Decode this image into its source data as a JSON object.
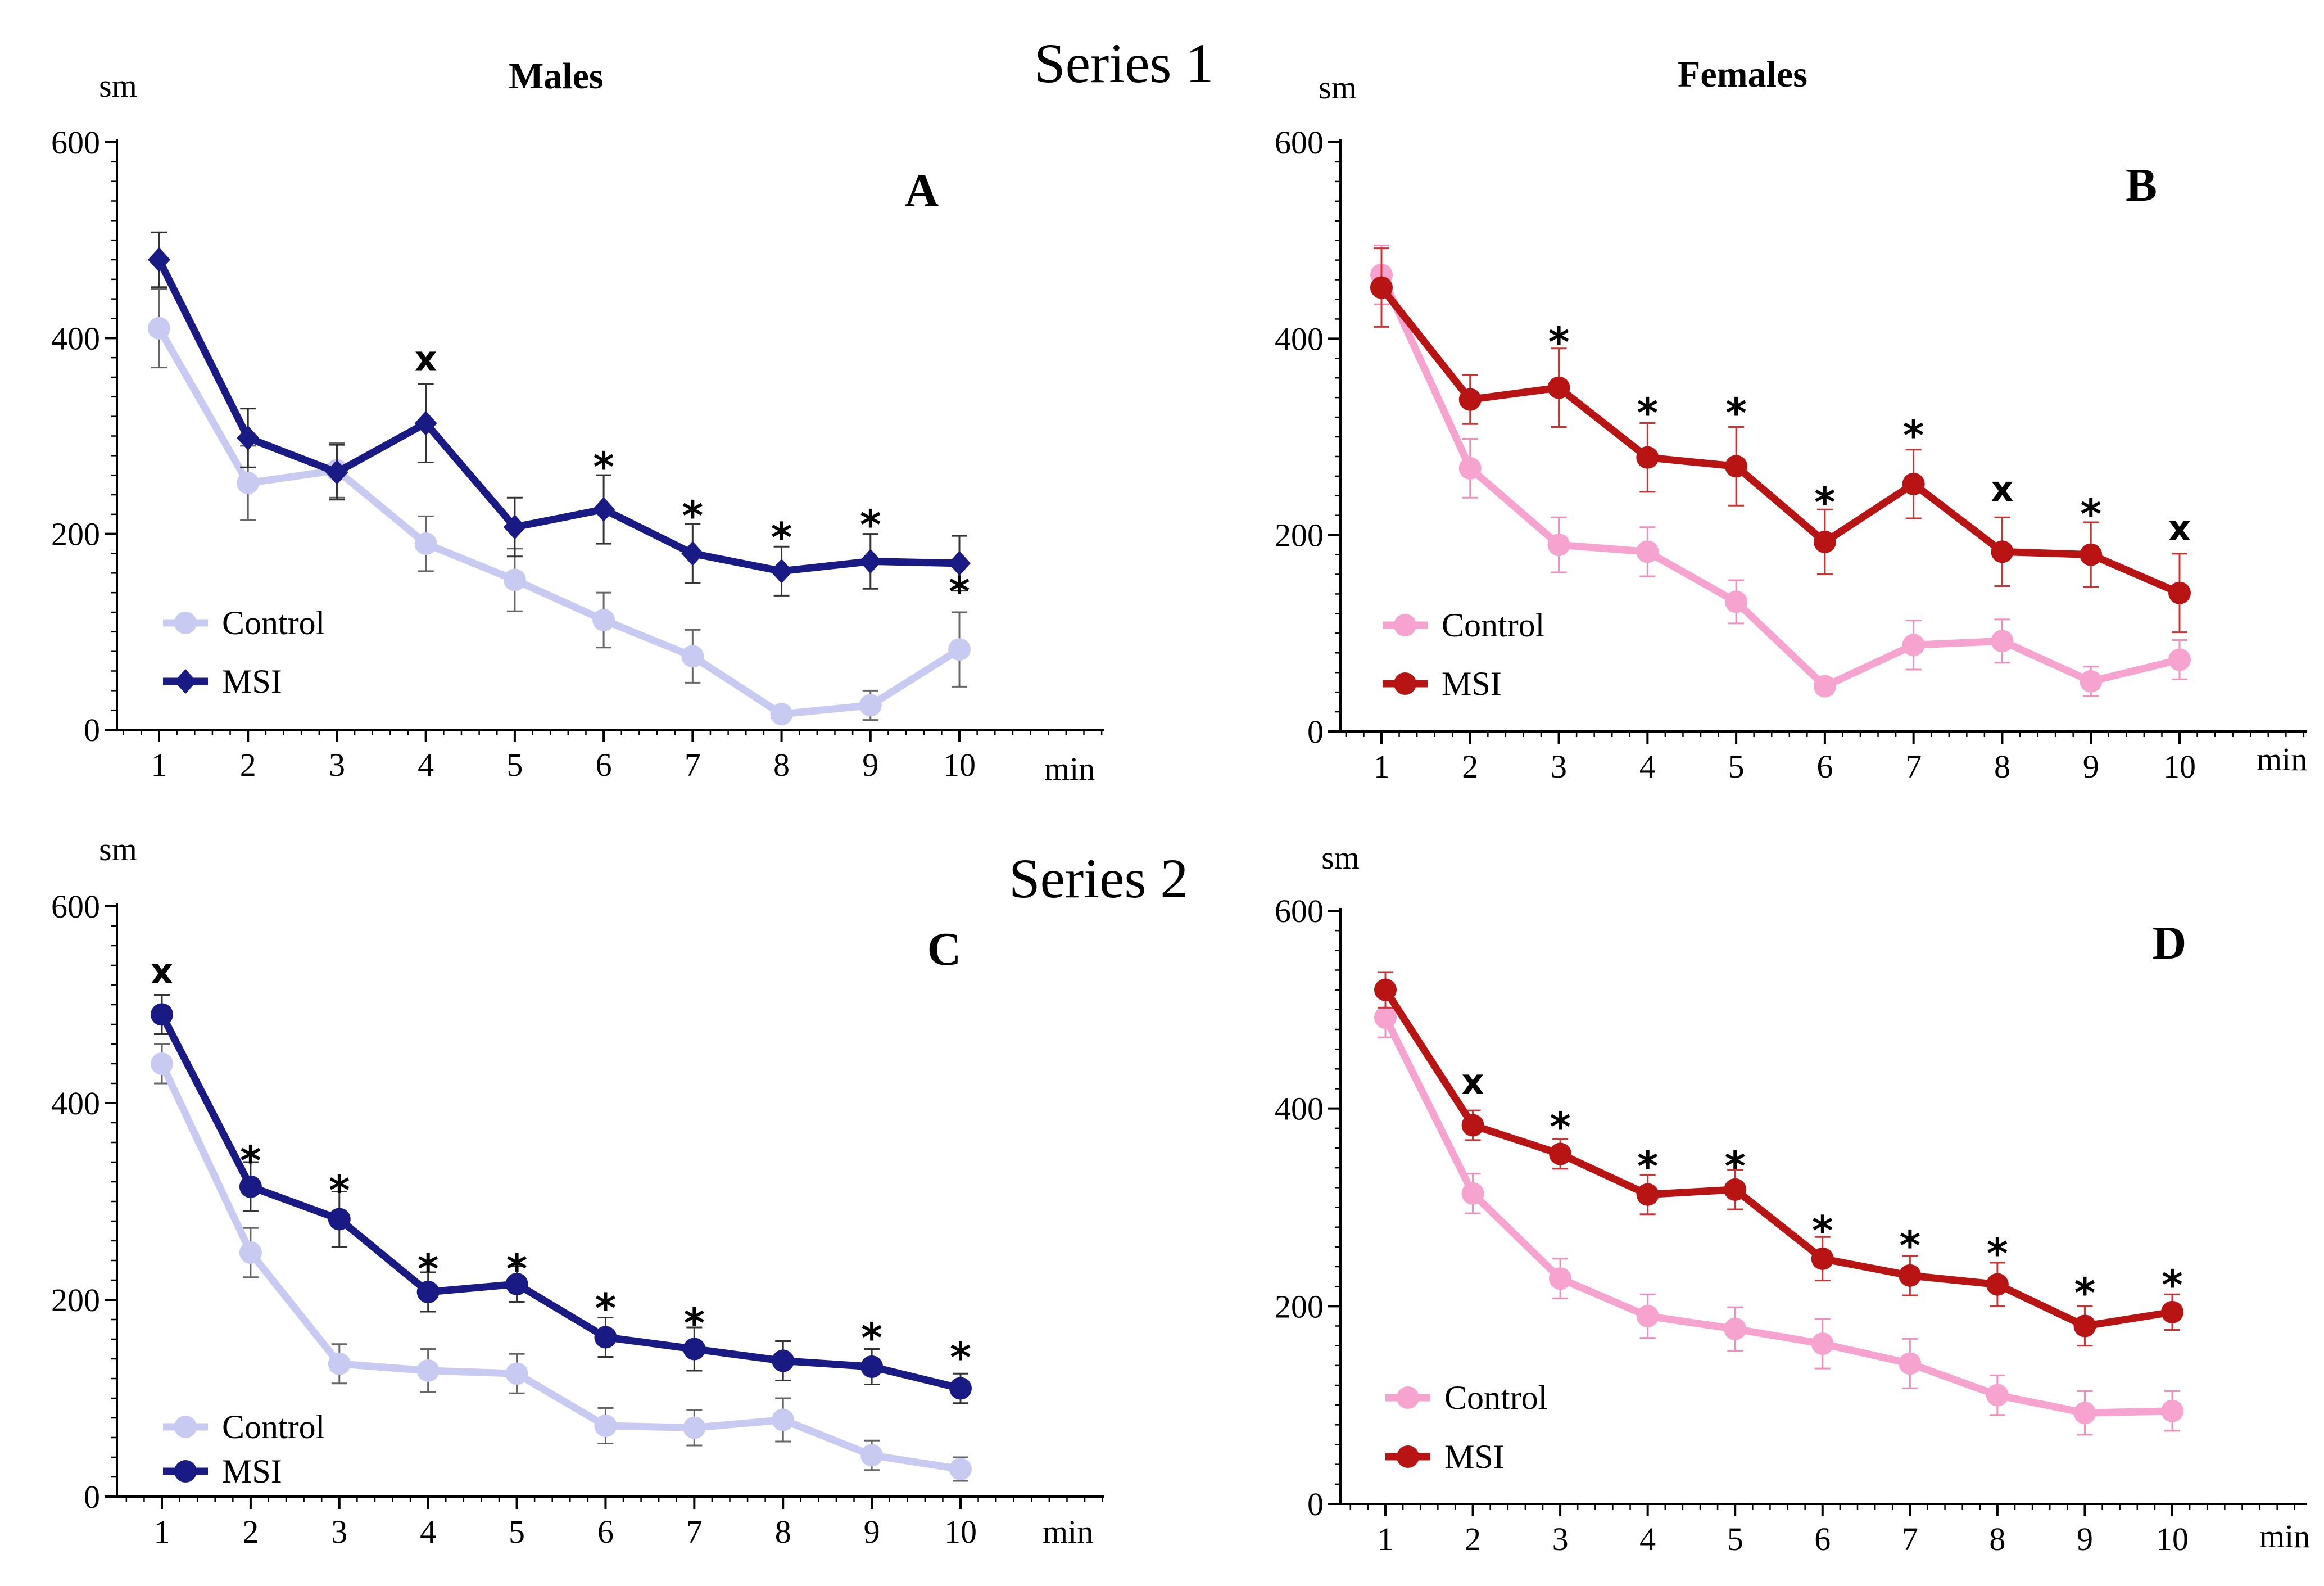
{
  "figure": {
    "series1_label": "Series 1",
    "series2_label": "Series 2",
    "males_label": "Males",
    "females_label": "Females"
  },
  "chart_data": [
    {
      "id": "A",
      "type": "line",
      "panel_label": "A",
      "ylabel": "sm",
      "xlabel": "min",
      "ylim": [
        0,
        600
      ],
      "yticks": [
        0,
        200,
        400,
        600
      ],
      "categories": [
        "1",
        "2",
        "3",
        "4",
        "5",
        "6",
        "7",
        "8",
        "9",
        "10"
      ],
      "series": [
        {
          "name": "Control",
          "color": "#c8caf2",
          "marker": "circle",
          "values": [
            410,
            252,
            265,
            190,
            153,
            112,
            75,
            16,
            25,
            82
          ],
          "errors": [
            40,
            38,
            28,
            28,
            32,
            28,
            27,
            6,
            15,
            38
          ]
        },
        {
          "name": "MSI",
          "color": "#1a1a85",
          "marker": "diamond",
          "values": [
            480,
            298,
            263,
            313,
            207,
            225,
            180,
            162,
            172,
            170
          ],
          "errors": [
            28,
            30,
            28,
            40,
            30,
            35,
            30,
            25,
            28,
            28
          ]
        }
      ],
      "annotations": [
        {
          "x": 4,
          "text": "x",
          "y": 377
        },
        {
          "x": 6,
          "text": "*",
          "y": 277
        },
        {
          "x": 7,
          "text": "*",
          "y": 227
        },
        {
          "x": 8,
          "text": "*",
          "y": 205
        },
        {
          "x": 9,
          "text": "*",
          "y": 218
        },
        {
          "x": 10,
          "text": "*",
          "y": 150
        }
      ],
      "legend": [
        {
          "name": "Control",
          "marker": "circle"
        },
        {
          "name": "MSI",
          "marker": "diamond"
        }
      ]
    },
    {
      "id": "B",
      "type": "line",
      "panel_label": "B",
      "ylabel": "sm",
      "xlabel": "min",
      "ylim": [
        0,
        600
      ],
      "yticks": [
        0,
        200,
        400,
        600
      ],
      "categories": [
        "1",
        "2",
        "3",
        "4",
        "5",
        "6",
        "7",
        "8",
        "9",
        "10"
      ],
      "series": [
        {
          "name": "Control",
          "color": "#f7a3cf",
          "marker": "circle",
          "values": [
            465,
            268,
            190,
            183,
            132,
            46,
            88,
            92,
            51,
            73
          ],
          "errors": [
            30,
            30,
            28,
            25,
            22,
            8,
            25,
            22,
            15,
            20
          ]
        },
        {
          "name": "MSI",
          "color": "#b81414",
          "marker": "circle",
          "values": [
            452,
            338,
            350,
            279,
            270,
            193,
            252,
            183,
            180,
            141
          ],
          "errors": [
            40,
            25,
            40,
            35,
            40,
            33,
            35,
            35,
            33,
            40
          ]
        }
      ],
      "annotations": [
        {
          "x": 3,
          "text": "*",
          "y": 405
        },
        {
          "x": 4,
          "text": "*",
          "y": 333
        },
        {
          "x": 5,
          "text": "*",
          "y": 333
        },
        {
          "x": 6,
          "text": "*",
          "y": 242
        },
        {
          "x": 7,
          "text": "*",
          "y": 310
        },
        {
          "x": 8,
          "text": "x",
          "y": 245
        },
        {
          "x": 9,
          "text": "*",
          "y": 230
        },
        {
          "x": 10,
          "text": "x",
          "y": 205
        }
      ],
      "legend": [
        {
          "name": "Control",
          "marker": "circle"
        },
        {
          "name": "MSI",
          "marker": "circle"
        }
      ]
    },
    {
      "id": "C",
      "type": "line",
      "panel_label": "C",
      "ylabel": "sm",
      "xlabel": "min",
      "ylim": [
        0,
        600
      ],
      "yticks": [
        0,
        200,
        400,
        600
      ],
      "categories": [
        "1",
        "2",
        "3",
        "4",
        "5",
        "6",
        "7",
        "8",
        "9",
        "10"
      ],
      "series": [
        {
          "name": "Control",
          "color": "#c8caf2",
          "marker": "circle",
          "values": [
            440,
            248,
            135,
            128,
            125,
            72,
            70,
            78,
            42,
            28
          ],
          "errors": [
            20,
            25,
            20,
            22,
            20,
            18,
            18,
            22,
            15,
            12
          ]
        },
        {
          "name": "MSI",
          "color": "#1a1a85",
          "marker": "circle",
          "values": [
            490,
            315,
            282,
            208,
            216,
            162,
            150,
            138,
            132,
            110
          ],
          "errors": [
            20,
            25,
            28,
            20,
            18,
            20,
            22,
            20,
            18,
            15
          ]
        }
      ],
      "annotations": [
        {
          "x": 1,
          "text": "x",
          "y": 532
        },
        {
          "x": 2,
          "text": "*",
          "y": 350
        },
        {
          "x": 3,
          "text": "*",
          "y": 320
        },
        {
          "x": 4,
          "text": "*",
          "y": 240
        },
        {
          "x": 5,
          "text": "*",
          "y": 240
        },
        {
          "x": 6,
          "text": "*",
          "y": 200
        },
        {
          "x": 7,
          "text": "*",
          "y": 185
        },
        {
          "x": 9,
          "text": "*",
          "y": 170
        },
        {
          "x": 10,
          "text": "*",
          "y": 150
        }
      ],
      "legend": [
        {
          "name": "Control",
          "marker": "circle"
        },
        {
          "name": "MSI",
          "marker": "circle"
        }
      ]
    },
    {
      "id": "D",
      "type": "line",
      "panel_label": "D",
      "ylabel": "sm",
      "xlabel": "min",
      "ylim": [
        0,
        600
      ],
      "yticks": [
        0,
        200,
        400,
        600
      ],
      "categories": [
        "1",
        "2",
        "3",
        "4",
        "5",
        "6",
        "7",
        "8",
        "9",
        "10"
      ],
      "series": [
        {
          "name": "Control",
          "color": "#f7a3cf",
          "marker": "circle",
          "values": [
            492,
            314,
            228,
            190,
            177,
            162,
            142,
            110,
            92,
            94
          ],
          "errors": [
            20,
            20,
            20,
            22,
            22,
            25,
            25,
            20,
            22,
            20
          ]
        },
        {
          "name": "MSI",
          "color": "#b81414",
          "marker": "circle",
          "values": [
            520,
            383,
            354,
            313,
            318,
            248,
            231,
            222,
            180,
            194
          ],
          "errors": [
            18,
            15,
            15,
            20,
            20,
            22,
            20,
            22,
            20,
            18
          ]
        }
      ],
      "annotations": [
        {
          "x": 2,
          "text": "x",
          "y": 425
        },
        {
          "x": 3,
          "text": "*",
          "y": 390
        },
        {
          "x": 4,
          "text": "*",
          "y": 350
        },
        {
          "x": 5,
          "text": "*",
          "y": 350
        },
        {
          "x": 6,
          "text": "*",
          "y": 285
        },
        {
          "x": 7,
          "text": "*",
          "y": 270
        },
        {
          "x": 8,
          "text": "*",
          "y": 262
        },
        {
          "x": 9,
          "text": "*",
          "y": 222
        },
        {
          "x": 10,
          "text": "*",
          "y": 230
        }
      ],
      "legend": [
        {
          "name": "Control",
          "marker": "circle"
        },
        {
          "name": "MSI",
          "marker": "circle"
        }
      ]
    }
  ]
}
